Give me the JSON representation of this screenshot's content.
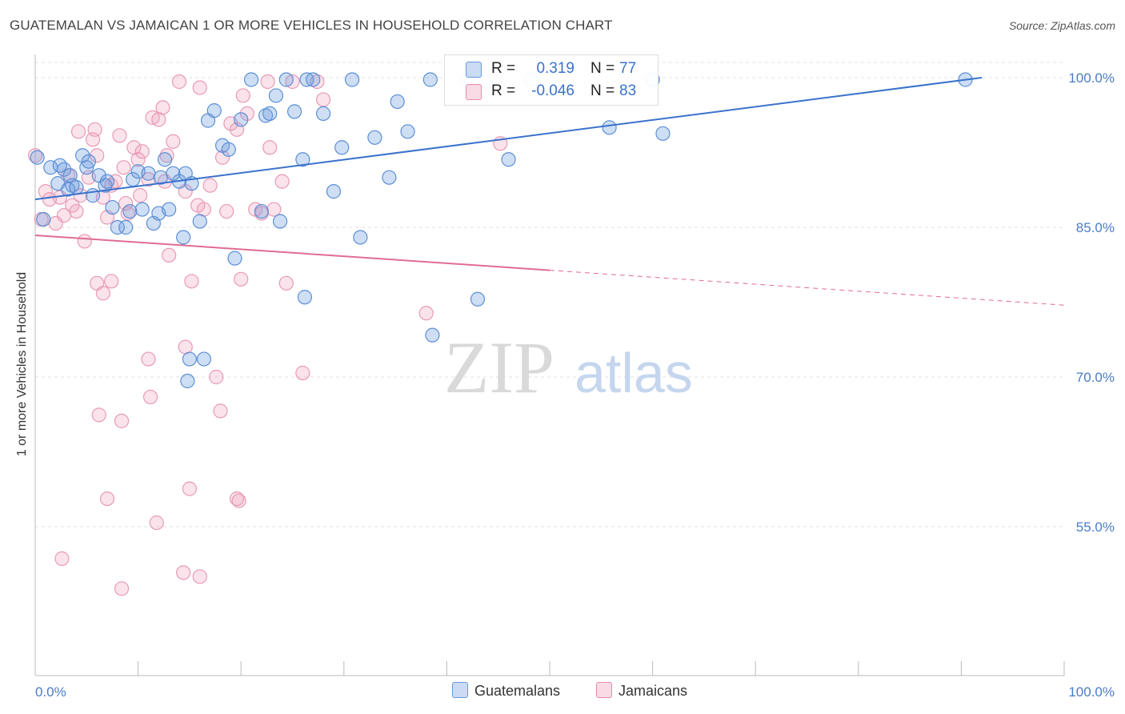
{
  "title": "GUATEMALAN VS JAMAICAN 1 OR MORE VEHICLES IN HOUSEHOLD CORRELATION CHART",
  "source": "Source: ZipAtlas.com",
  "watermark": {
    "zip": "ZIP",
    "atlas": "atlas"
  },
  "legend": {
    "rows": [
      {
        "r_label": "R =",
        "r_value": "0.319",
        "n_label": "N =",
        "n_value": "77",
        "color": "#6699dd"
      },
      {
        "r_label": "R =",
        "r_value": "-0.046",
        "n_label": "N =",
        "n_value": "83",
        "color": "#e889a8"
      }
    ]
  },
  "bottom_legend": {
    "guatemalans": "Guatemalans",
    "jamaicans": "Jamaicans"
  },
  "colors": {
    "blue": "#6699dd",
    "blue_line": "#3a72cc",
    "pink": "#ee99b8",
    "pink_line": "#e06c95",
    "tick": "#4a7cc7"
  },
  "chart_data": {
    "type": "scatter",
    "title": "GUATEMALAN VS JAMAICAN 1 OR MORE VEHICLES IN HOUSEHOLD CORRELATION CHART",
    "xlabel": "",
    "ylabel": "1 or more Vehicles in Household",
    "xlim": [
      0,
      100
    ],
    "ylim": [
      42,
      101
    ],
    "x_tick_labels": [
      "0.0%",
      "100.0%"
    ],
    "y_ticks": [
      100,
      85,
      70,
      55
    ],
    "y_tick_labels": [
      "100.0%",
      "85.0%",
      "70.0%",
      "55.0%"
    ],
    "grid": true,
    "series": [
      {
        "name": "Guatemalans",
        "color": "#6699dd",
        "trend": {
          "x": [
            0,
            92
          ],
          "y": [
            87.8,
            100.0
          ],
          "dashed_to": null
        },
        "points": [
          [
            0.2,
            92.0
          ],
          [
            0.8,
            85.8
          ],
          [
            1.5,
            91.0
          ],
          [
            2.2,
            89.4
          ],
          [
            2.8,
            90.8
          ],
          [
            3.2,
            88.8
          ],
          [
            3.6,
            89.2
          ],
          [
            4.0,
            89.0
          ],
          [
            4.6,
            92.2
          ],
          [
            5.0,
            91.0
          ],
          [
            5.6,
            88.2
          ],
          [
            6.2,
            90.2
          ],
          [
            6.8,
            89.2
          ],
          [
            7.5,
            87.0
          ],
          [
            8.0,
            85.0
          ],
          [
            8.8,
            85.0
          ],
          [
            9.5,
            89.8
          ],
          [
            10.0,
            90.6
          ],
          [
            10.4,
            86.8
          ],
          [
            11.0,
            90.4
          ],
          [
            11.5,
            85.4
          ],
          [
            12.0,
            86.4
          ],
          [
            12.6,
            91.8
          ],
          [
            13.0,
            86.8
          ],
          [
            13.4,
            90.4
          ],
          [
            14.0,
            89.6
          ],
          [
            14.4,
            84.0
          ],
          [
            15.2,
            89.4
          ],
          [
            16.0,
            85.6
          ],
          [
            16.8,
            95.7
          ],
          [
            17.4,
            96.7
          ],
          [
            18.2,
            93.2
          ],
          [
            18.8,
            92.8
          ],
          [
            19.4,
            81.9
          ],
          [
            20.0,
            95.8
          ],
          [
            21.0,
            99.8
          ],
          [
            22.0,
            86.6
          ],
          [
            22.4,
            96.2
          ],
          [
            22.8,
            96.4
          ],
          [
            23.4,
            98.2
          ],
          [
            23.8,
            85.6
          ],
          [
            24.4,
            99.8
          ],
          [
            25.2,
            96.6
          ],
          [
            26.0,
            91.8
          ],
          [
            26.4,
            99.8
          ],
          [
            26.2,
            78.0
          ],
          [
            27.0,
            99.8
          ],
          [
            28.0,
            96.4
          ],
          [
            29.0,
            88.6
          ],
          [
            29.8,
            93.0
          ],
          [
            30.8,
            99.8
          ],
          [
            31.6,
            84.0
          ],
          [
            33.0,
            94.0
          ],
          [
            34.4,
            90.0
          ],
          [
            35.2,
            97.6
          ],
          [
            36.2,
            94.6
          ],
          [
            38.4,
            99.8
          ],
          [
            38.6,
            74.2
          ],
          [
            42.0,
            99.8
          ],
          [
            43.0,
            77.8
          ],
          [
            43.8,
            99.6
          ],
          [
            46.0,
            91.8
          ],
          [
            48.2,
            99.8
          ],
          [
            55.8,
            95.0
          ],
          [
            60.0,
            99.8
          ],
          [
            61.0,
            94.4
          ],
          [
            90.4,
            99.8
          ],
          [
            15.0,
            71.8
          ],
          [
            16.4,
            71.8
          ],
          [
            14.8,
            69.6
          ],
          [
            2.4,
            91.2
          ],
          [
            3.4,
            90.2
          ],
          [
            5.2,
            91.6
          ],
          [
            7.0,
            89.6
          ],
          [
            9.2,
            86.6
          ],
          [
            12.2,
            90.0
          ],
          [
            14.6,
            90.4
          ]
        ]
      },
      {
        "name": "Jamaicans",
        "color": "#ee99b8",
        "trend": {
          "x": [
            0,
            50
          ],
          "y": [
            84.2,
            80.7
          ],
          "dashed_to": {
            "x": 100,
            "y": 77.2
          }
        },
        "points": [
          [
            0.0,
            92.2
          ],
          [
            0.6,
            85.8
          ],
          [
            1.0,
            88.6
          ],
          [
            1.4,
            87.8
          ],
          [
            2.0,
            85.4
          ],
          [
            2.4,
            88.0
          ],
          [
            2.8,
            86.2
          ],
          [
            3.2,
            90.2
          ],
          [
            3.6,
            87.2
          ],
          [
            4.0,
            86.6
          ],
          [
            4.4,
            88.2
          ],
          [
            4.8,
            83.6
          ],
          [
            5.2,
            90.0
          ],
          [
            5.6,
            93.8
          ],
          [
            6.0,
            92.2
          ],
          [
            6.6,
            88.0
          ],
          [
            7.0,
            86.0
          ],
          [
            7.4,
            89.2
          ],
          [
            7.8,
            89.6
          ],
          [
            8.2,
            94.2
          ],
          [
            8.6,
            91.0
          ],
          [
            9.0,
            86.4
          ],
          [
            9.6,
            93.0
          ],
          [
            10.0,
            91.8
          ],
          [
            10.4,
            92.6
          ],
          [
            11.0,
            89.8
          ],
          [
            11.4,
            96.0
          ],
          [
            12.0,
            95.8
          ],
          [
            12.4,
            97.0
          ],
          [
            12.8,
            92.2
          ],
          [
            13.0,
            82.2
          ],
          [
            13.4,
            93.6
          ],
          [
            14.0,
            99.6
          ],
          [
            14.6,
            88.6
          ],
          [
            15.2,
            79.6
          ],
          [
            15.8,
            87.2
          ],
          [
            16.4,
            86.8
          ],
          [
            17.0,
            89.2
          ],
          [
            17.6,
            70.0
          ],
          [
            18.0,
            66.6
          ],
          [
            18.6,
            86.6
          ],
          [
            19.0,
            95.4
          ],
          [
            19.6,
            94.8
          ],
          [
            20.0,
            79.8
          ],
          [
            20.6,
            96.4
          ],
          [
            21.4,
            86.8
          ],
          [
            22.0,
            86.4
          ],
          [
            22.6,
            99.6
          ],
          [
            23.2,
            86.8
          ],
          [
            24.0,
            89.6
          ],
          [
            24.4,
            79.4
          ],
          [
            26.0,
            70.4
          ],
          [
            27.4,
            99.6
          ],
          [
            28.0,
            97.8
          ],
          [
            6.0,
            79.4
          ],
          [
            7.4,
            79.6
          ],
          [
            6.6,
            78.4
          ],
          [
            11.0,
            71.8
          ],
          [
            11.2,
            68.0
          ],
          [
            14.6,
            73.0
          ],
          [
            15.0,
            58.8
          ],
          [
            14.4,
            50.4
          ],
          [
            16.0,
            50.0
          ],
          [
            6.2,
            66.2
          ],
          [
            8.4,
            65.6
          ],
          [
            7.0,
            57.8
          ],
          [
            11.8,
            55.4
          ],
          [
            2.6,
            51.8
          ],
          [
            8.4,
            48.8
          ],
          [
            19.6,
            57.8
          ],
          [
            19.8,
            57.6
          ],
          [
            38.0,
            76.4
          ],
          [
            45.2,
            93.4
          ],
          [
            8.8,
            87.4
          ],
          [
            10.2,
            88.2
          ],
          [
            12.6,
            89.6
          ],
          [
            4.2,
            94.6
          ],
          [
            5.8,
            94.8
          ],
          [
            16.0,
            99.0
          ],
          [
            18.2,
            92.0
          ],
          [
            20.2,
            98.2
          ],
          [
            22.8,
            93.0
          ],
          [
            25.0,
            99.6
          ]
        ]
      }
    ]
  }
}
